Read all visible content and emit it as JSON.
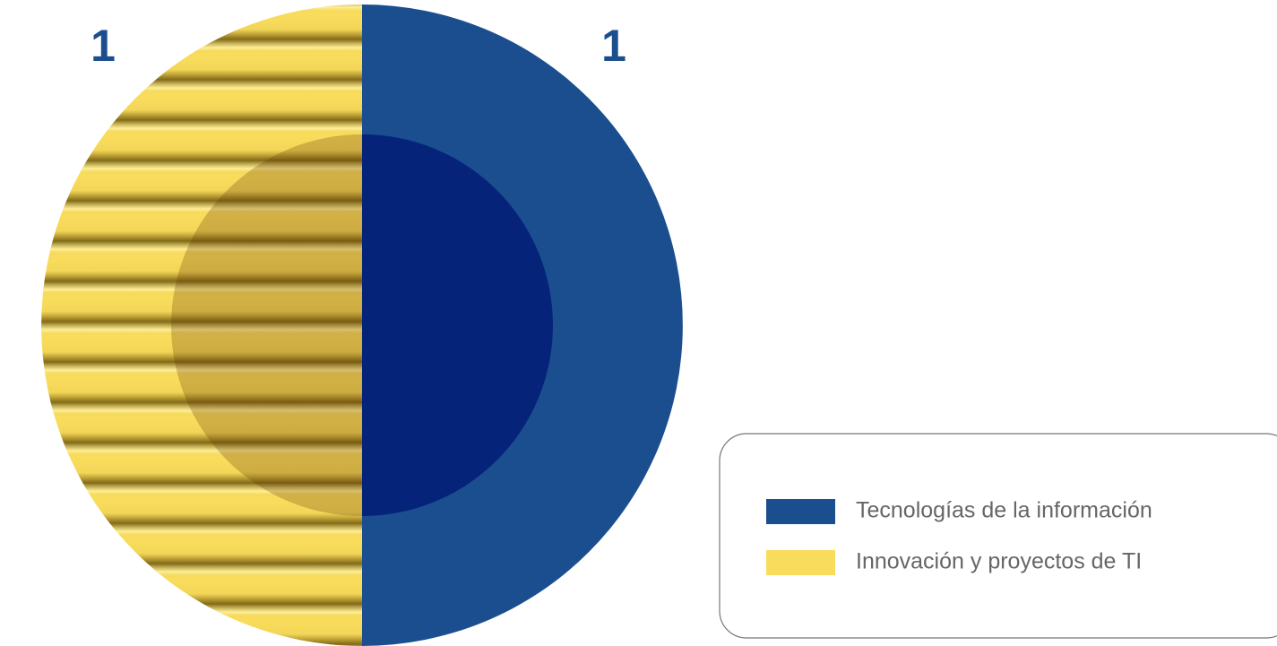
{
  "chart_data": {
    "type": "pie",
    "categories": [
      "Tecnologías de la información",
      "Innovación y proyectos de TI"
    ],
    "values": [
      1,
      1
    ],
    "colors": [
      "#1b4e8f",
      "#f9dc5c"
    ]
  }
}
